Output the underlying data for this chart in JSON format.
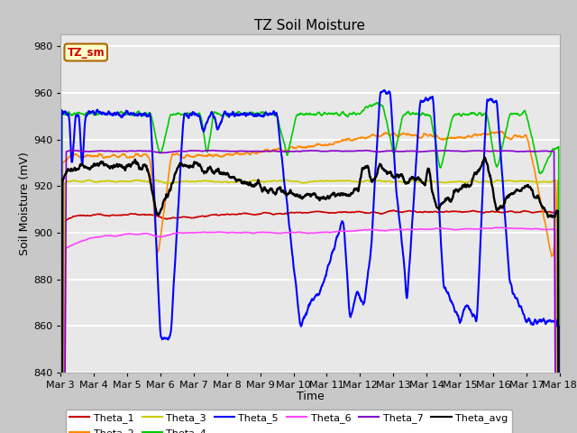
{
  "title": "TZ Soil Moisture",
  "xlabel": "Time",
  "ylabel": "Soil Moisture (mV)",
  "ylim": [
    840,
    985
  ],
  "yticks": [
    840,
    860,
    880,
    900,
    920,
    940,
    960,
    980
  ],
  "xtick_labels": [
    "Mar 3",
    "Mar 4",
    "Mar 5",
    "Mar 6",
    "Mar 7",
    "Mar 8",
    "Mar 9",
    "Mar 10",
    "Mar 11",
    "Mar 12",
    "Mar 13",
    "Mar 14",
    "Mar 15",
    "Mar 16",
    "Mar 17",
    "Mar 18"
  ],
  "legend_label": "TZ_sm",
  "colors": {
    "Theta_1": "#cc0000",
    "Theta_2": "#ff8800",
    "Theta_3": "#cccc00",
    "Theta_4": "#00cc00",
    "Theta_5": "#0000ff",
    "Theta_6": "#ff44ff",
    "Theta_7": "#8800cc",
    "Theta_avg": "#000000"
  },
  "fig_bg": "#c8c8c8",
  "plot_bg": "#e8e8e8",
  "grid_color": "#ffffff",
  "lw": 1.2
}
